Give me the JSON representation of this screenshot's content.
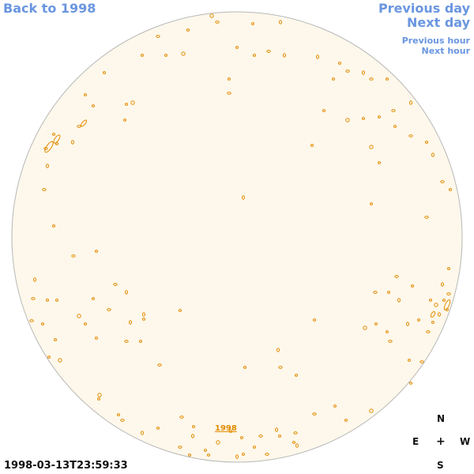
{
  "nav": {
    "back": "Back to 1998",
    "previous_day": "Previous day",
    "next_day": "Next day",
    "previous_hour": "Previous hour",
    "next_hour": "Next hour"
  },
  "timestamp": "1998-03-13T23:59:33",
  "year_marker": "1998",
  "compass": {
    "north": "N",
    "south": "S",
    "east": "E",
    "west": "W",
    "center": "+"
  },
  "colors": {
    "disk_fill": "#fdf8eb",
    "disk_edge": "#b8b8b8",
    "feature": "#e38a00",
    "link": "#6a96e0"
  }
}
